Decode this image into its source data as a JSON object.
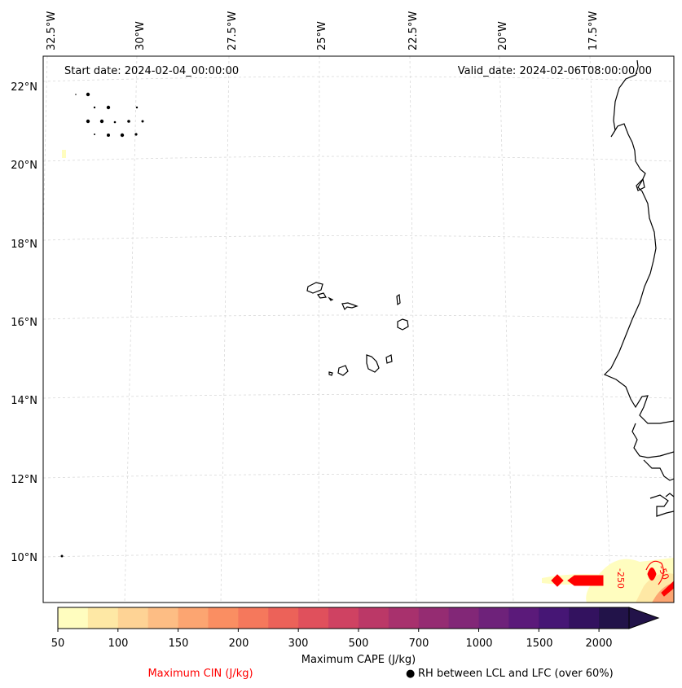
{
  "map": {
    "start_date": "Start date: 2024-02-04_00:00:00",
    "valid_date": "Valid_date: 2024-02-06T08:00:00.00",
    "lon_labels": [
      "32.5°W",
      "30°W",
      "27.5°W",
      "25°W",
      "22.5°W",
      "20°W",
      "17.5°W"
    ],
    "lat_labels": [
      "22°N",
      "20°N",
      "18°N",
      "16°N",
      "14°N",
      "12°N",
      "10°N"
    ],
    "cin_contour_labels": [
      "-250",
      "-50"
    ]
  },
  "colorbar": {
    "title": "Maximum CAPE (J/kg)",
    "tick_labels": [
      "50",
      "100",
      "150",
      "200",
      "300",
      "500",
      "700",
      "1000",
      "1500",
      "2000"
    ],
    "colors": [
      "#fffdbf",
      "#fee8a5",
      "#fed395",
      "#fdbd84",
      "#fca571",
      "#fa8e62",
      "#f5785c",
      "#ec6259",
      "#e0505c",
      "#cf4262",
      "#bb3867",
      "#a8316d",
      "#952c72",
      "#822777",
      "#6e227a",
      "#5b1a7a",
      "#461675",
      "#33125f",
      "#221349"
    ]
  },
  "legend": {
    "cin_label": "Maximum CIN (J/kg)",
    "cin_color": "#ff0000",
    "rh_label": "RH between LCL and LFC (over 60%)",
    "rh_marker": "●"
  }
}
